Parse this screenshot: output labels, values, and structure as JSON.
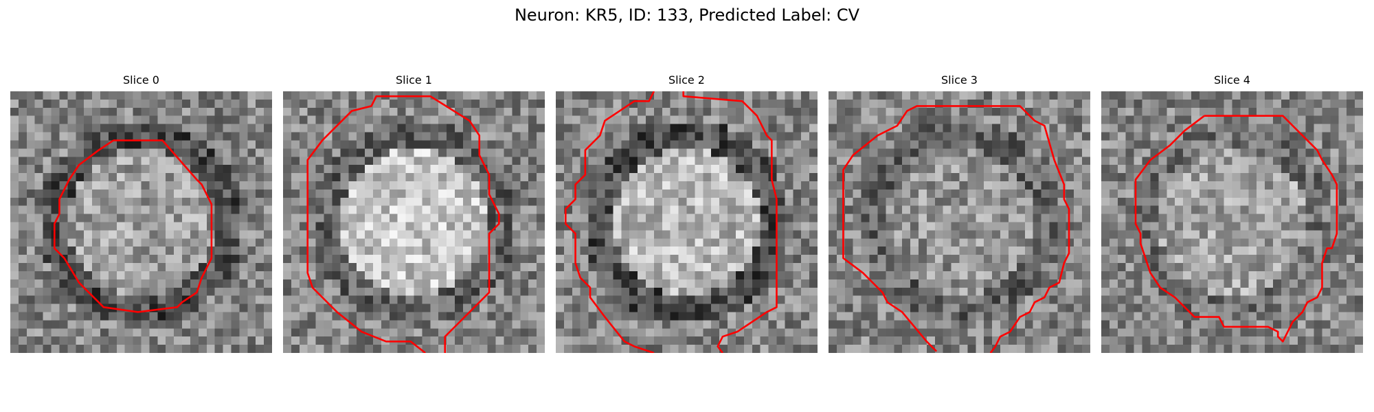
{
  "figure": {
    "title": "Neuron: KR5, ID: 133, Predicted Label: CV"
  },
  "style": {
    "contour_color": "#ff0000",
    "colormap": "gray"
  },
  "panels": [
    {
      "title": "Slice 0",
      "seed": 11,
      "center_brightness": 0.62,
      "ring_darkness": 0.3
    },
    {
      "title": "Slice 1",
      "seed": 23,
      "center_brightness": 0.78,
      "ring_darkness": 0.4
    },
    {
      "title": "Slice 2",
      "seed": 37,
      "center_brightness": 0.72,
      "ring_darkness": 0.3
    },
    {
      "title": "Slice 3",
      "seed": 41,
      "center_brightness": 0.58,
      "ring_darkness": 0.4
    },
    {
      "title": "Slice 4",
      "seed": 53,
      "center_brightness": 0.64,
      "ring_darkness": 0.45
    }
  ]
}
